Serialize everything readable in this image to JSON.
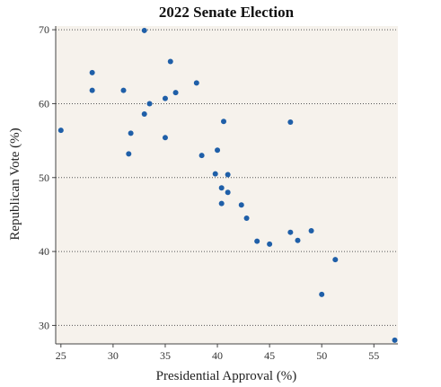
{
  "chart_data": {
    "type": "scatter",
    "title": "2022 Senate Election",
    "xlabel": "Presidential Approval (%)",
    "ylabel": "Republican Vote (%)",
    "xlim": [
      24.5,
      57.3
    ],
    "ylim": [
      27.5,
      70.5
    ],
    "x_ticks": [
      "25",
      "30",
      "35",
      "40",
      "45",
      "50",
      "55"
    ],
    "y_ticks": [
      "30",
      "40",
      "50",
      "60",
      "70"
    ],
    "grid": "horizontal dotted",
    "legend": "none",
    "colors": {
      "point": "#1f5fa8",
      "plot_background": "#f6f2ec",
      "grid": "#555555",
      "axis": "#444444"
    },
    "points": [
      {
        "x": 25.0,
        "y": 56.4
      },
      {
        "x": 28.0,
        "y": 64.2
      },
      {
        "x": 28.0,
        "y": 61.8
      },
      {
        "x": 31.0,
        "y": 61.8
      },
      {
        "x": 31.5,
        "y": 53.2
      },
      {
        "x": 31.7,
        "y": 56.0
      },
      {
        "x": 33.0,
        "y": 69.9
      },
      {
        "x": 33.0,
        "y": 58.6
      },
      {
        "x": 33.5,
        "y": 60.0
      },
      {
        "x": 35.0,
        "y": 60.7
      },
      {
        "x": 35.0,
        "y": 55.4
      },
      {
        "x": 35.5,
        "y": 65.7
      },
      {
        "x": 36.0,
        "y": 61.5
      },
      {
        "x": 38.0,
        "y": 62.8
      },
      {
        "x": 38.5,
        "y": 53.0
      },
      {
        "x": 39.8,
        "y": 50.5
      },
      {
        "x": 40.0,
        "y": 53.7
      },
      {
        "x": 40.4,
        "y": 48.6
      },
      {
        "x": 40.4,
        "y": 46.5
      },
      {
        "x": 40.6,
        "y": 57.6
      },
      {
        "x": 41.0,
        "y": 50.4
      },
      {
        "x": 41.0,
        "y": 48.0
      },
      {
        "x": 42.3,
        "y": 46.3
      },
      {
        "x": 42.8,
        "y": 44.5
      },
      {
        "x": 43.8,
        "y": 41.4
      },
      {
        "x": 45.0,
        "y": 41.0
      },
      {
        "x": 47.0,
        "y": 57.5
      },
      {
        "x": 47.0,
        "y": 42.6
      },
      {
        "x": 47.7,
        "y": 41.5
      },
      {
        "x": 49.0,
        "y": 42.8
      },
      {
        "x": 50.0,
        "y": 34.2
      },
      {
        "x": 51.3,
        "y": 38.9
      },
      {
        "x": 57.0,
        "y": 28.0
      }
    ]
  }
}
